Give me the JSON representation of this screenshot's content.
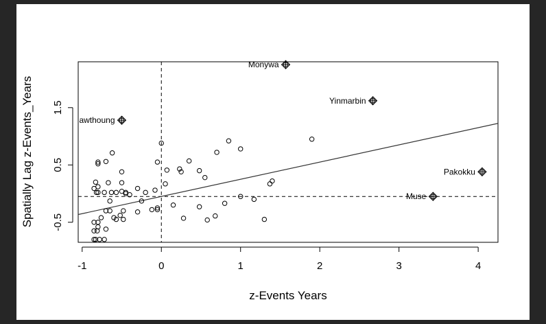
{
  "chart_data": {
    "type": "scatter",
    "xlabel": "z-Events Years",
    "ylabel": "Spatially Lag z-Events_Years",
    "xlim": [
      -1.05,
      4.25
    ],
    "ylim": [
      -0.85,
      2.3
    ],
    "xticks": [
      -1,
      0,
      1,
      2,
      3,
      4
    ],
    "xtick_labels": [
      "-1",
      "0",
      "1",
      "2",
      "3",
      "4"
    ],
    "yticks": [
      -0.5,
      0.5,
      1.5
    ],
    "ytick_labels": [
      "-0.5",
      "0.5",
      "1.5"
    ],
    "x_mean_line": 0.0,
    "y_mean_line": -0.05,
    "regression_line": {
      "intercept": -0.05,
      "slope": 0.3
    },
    "grid": false,
    "legend": "none",
    "points": [
      {
        "x": -0.85,
        "y": -0.8
      },
      {
        "x": -0.83,
        "y": -0.8
      },
      {
        "x": -0.78,
        "y": -0.8
      },
      {
        "x": -0.72,
        "y": -0.8
      },
      {
        "x": -0.85,
        "y": -0.65
      },
      {
        "x": -0.81,
        "y": -0.65
      },
      {
        "x": -0.8,
        "y": -0.58
      },
      {
        "x": -0.7,
        "y": -0.62
      },
      {
        "x": -0.85,
        "y": -0.5
      },
      {
        "x": -0.8,
        "y": -0.5
      },
      {
        "x": -0.76,
        "y": -0.42
      },
      {
        "x": -0.6,
        "y": -0.42
      },
      {
        "x": -0.52,
        "y": -0.38
      },
      {
        "x": -0.48,
        "y": -0.45
      },
      {
        "x": -0.57,
        "y": -0.45
      },
      {
        "x": -0.7,
        "y": -0.3
      },
      {
        "x": -0.65,
        "y": -0.3
      },
      {
        "x": -0.48,
        "y": -0.3
      },
      {
        "x": -0.3,
        "y": -0.32
      },
      {
        "x": -0.12,
        "y": -0.28
      },
      {
        "x": -0.05,
        "y": -0.25
      },
      {
        "x": -0.05,
        "y": -0.28
      },
      {
        "x": -0.65,
        "y": -0.13
      },
      {
        "x": -0.25,
        "y": -0.13
      },
      {
        "x": -0.82,
        "y": 0.02
      },
      {
        "x": -0.8,
        "y": 0.02
      },
      {
        "x": -0.72,
        "y": 0.02
      },
      {
        "x": -0.63,
        "y": 0.02
      },
      {
        "x": -0.57,
        "y": 0.02
      },
      {
        "x": -0.5,
        "y": 0.04
      },
      {
        "x": -0.45,
        "y": 0.0
      },
      {
        "x": -0.4,
        "y": -0.02
      },
      {
        "x": -0.2,
        "y": 0.02
      },
      {
        "x": -0.3,
        "y": 0.09
      },
      {
        "x": -0.08,
        "y": 0.06
      },
      {
        "x": -0.85,
        "y": 0.09
      },
      {
        "x": -0.8,
        "y": 0.12
      },
      {
        "x": -0.67,
        "y": 0.19
      },
      {
        "x": -0.5,
        "y": 0.19
      },
      {
        "x": -0.45,
        "y": 0.02
      },
      {
        "x": -0.5,
        "y": 0.38
      },
      {
        "x": -0.83,
        "y": 0.2
      },
      {
        "x": -0.7,
        "y": 0.56
      },
      {
        "x": -0.8,
        "y": 0.55
      },
      {
        "x": -0.8,
        "y": 0.52
      },
      {
        "x": -0.62,
        "y": 0.71
      },
      {
        "x": 0.0,
        "y": 0.88
      },
      {
        "x": -0.05,
        "y": 0.55
      },
      {
        "x": 0.05,
        "y": 0.17
      },
      {
        "x": 0.07,
        "y": 0.41
      },
      {
        "x": 0.23,
        "y": 0.43
      },
      {
        "x": 0.25,
        "y": 0.38
      },
      {
        "x": 0.35,
        "y": 0.57
      },
      {
        "x": 0.48,
        "y": 0.4
      },
      {
        "x": 0.55,
        "y": 0.28
      },
      {
        "x": 0.7,
        "y": 0.72
      },
      {
        "x": 0.85,
        "y": 0.92
      },
      {
        "x": 1.0,
        "y": 0.78
      },
      {
        "x": 0.15,
        "y": -0.2
      },
      {
        "x": 0.28,
        "y": -0.43
      },
      {
        "x": 0.48,
        "y": -0.23
      },
      {
        "x": 0.58,
        "y": -0.46
      },
      {
        "x": 0.68,
        "y": -0.39
      },
      {
        "x": 0.8,
        "y": -0.17
      },
      {
        "x": 1.0,
        "y": -0.05
      },
      {
        "x": 1.17,
        "y": -0.1
      },
      {
        "x": 1.3,
        "y": -0.45
      },
      {
        "x": 1.37,
        "y": 0.17
      },
      {
        "x": 1.4,
        "y": 0.22
      },
      {
        "x": 1.9,
        "y": 0.95
      }
    ],
    "labeled_points": [
      {
        "x": -0.5,
        "y": 1.28,
        "label": "awthoung"
      },
      {
        "x": 1.57,
        "y": 2.25,
        "label": "Monywa"
      },
      {
        "x": 2.67,
        "y": 1.62,
        "label": "Yinmarbin"
      },
      {
        "x": 3.43,
        "y": -0.05,
        "label": "Muse"
      },
      {
        "x": 4.05,
        "y": 0.38,
        "label": "Pakokku"
      }
    ]
  }
}
